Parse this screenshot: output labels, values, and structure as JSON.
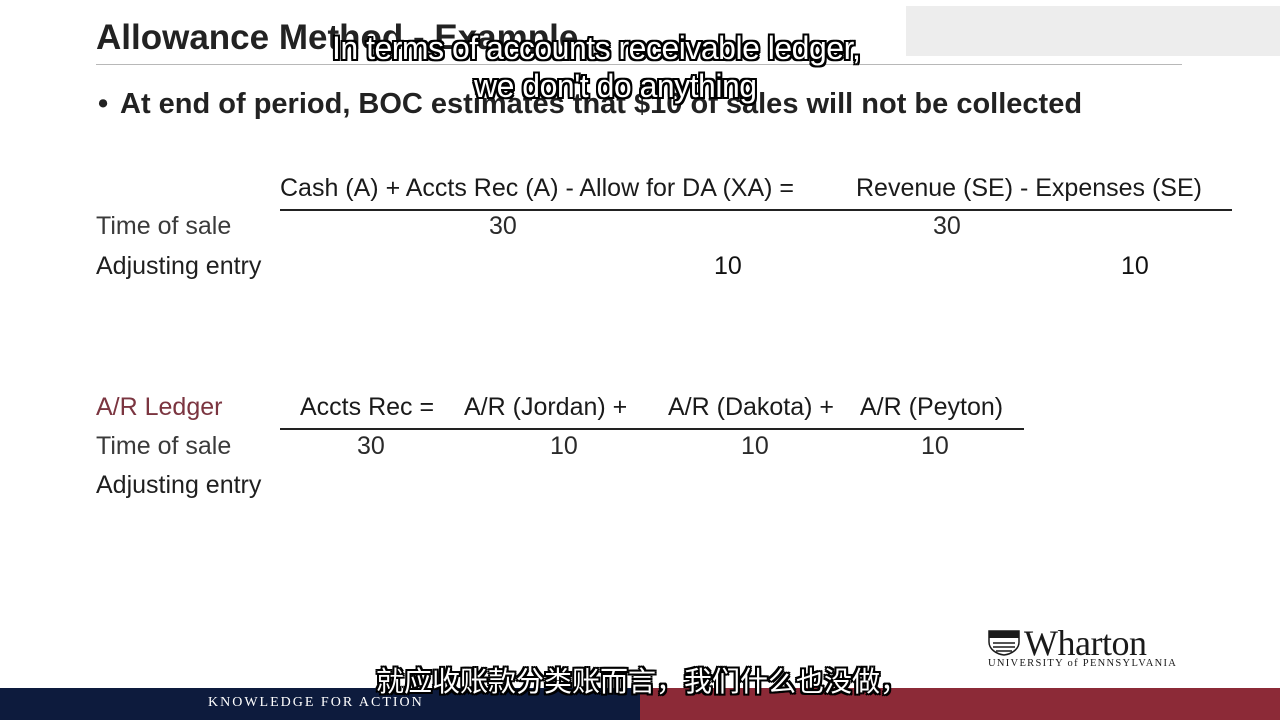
{
  "slide": {
    "title": "Allowance Method - Example",
    "bullet": "At end of period, BOC estimates that $10 of sales will not be collected"
  },
  "equation_table": {
    "header": "Cash (A) + Accts Rec (A) - Allow for DA (XA) =",
    "header_right": "Revenue (SE) - Expenses (SE)",
    "rows": [
      {
        "label": "Time of sale",
        "cash": "30",
        "revenue": "30"
      },
      {
        "label": "Adjusting entry",
        "allow": "10",
        "expenses": "10"
      }
    ]
  },
  "ledger_table": {
    "label": "A/R Ledger",
    "headers": [
      "Accts Rec =",
      "A/R (Jordan) +",
      "A/R (Dakota) +",
      "A/R (Peyton)"
    ],
    "rows": [
      {
        "label": "Time of sale",
        "values": [
          "30",
          "10",
          "10",
          "10"
        ]
      },
      {
        "label": "Adjusting entry",
        "values": [
          "",
          "",
          "",
          ""
        ]
      }
    ]
  },
  "subtitles": {
    "en_line1": "In terms of accounts receivable ledger,",
    "en_line2": "we don't do anything",
    "zh": "就应收账款分类账而言，我们什么也没做，"
  },
  "branding": {
    "logo_text": "Wharton",
    "logo_sub": "UNIVERSITY of PENNSYLVANIA",
    "tagline": "KNOWLEDGE FOR ACTION",
    "navy": "#0d1b3d",
    "maroon": "#8c2a37",
    "shield_icon": "penn-shield-icon"
  }
}
